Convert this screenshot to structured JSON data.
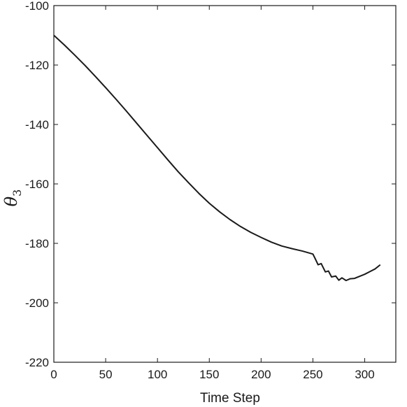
{
  "chart_data": {
    "type": "line",
    "title": "",
    "xlabel": "Time Step",
    "ylabel": {
      "symbol": "θ",
      "subscript": "3"
    },
    "xlim": [
      0,
      330
    ],
    "ylim": [
      -220,
      -100
    ],
    "xticks": [
      0,
      50,
      100,
      150,
      200,
      250,
      300
    ],
    "yticks": [
      -220,
      -200,
      -180,
      -160,
      -140,
      -120,
      -100
    ],
    "grid": false,
    "legend": "none",
    "line_color": "#1a1a1a",
    "series": [
      {
        "x": [
          0,
          10,
          20,
          30,
          40,
          50,
          60,
          70,
          80,
          90,
          100,
          110,
          120,
          130,
          140,
          150,
          160,
          170,
          180,
          190,
          200,
          210,
          220,
          230,
          240,
          250,
          252,
          255,
          258,
          262,
          265,
          268,
          272,
          275,
          278,
          282,
          286,
          290,
          295,
          300,
          305,
          310,
          315
        ],
        "y": [
          -110,
          -113.2,
          -116.6,
          -120.1,
          -123.8,
          -127.6,
          -131.5,
          -135.5,
          -139.6,
          -143.7,
          -147.8,
          -151.9,
          -155.9,
          -159.6,
          -163.2,
          -166.5,
          -169.4,
          -172.0,
          -174.3,
          -176.3,
          -178.0,
          -179.6,
          -180.9,
          -181.8,
          -182.6,
          -183.6,
          -185.0,
          -187.2,
          -186.8,
          -189.6,
          -189.3,
          -191.3,
          -191.0,
          -192.4,
          -191.6,
          -192.5,
          -191.9,
          -191.8,
          -191.1,
          -190.4,
          -189.5,
          -188.6,
          -187.2
        ]
      }
    ]
  }
}
